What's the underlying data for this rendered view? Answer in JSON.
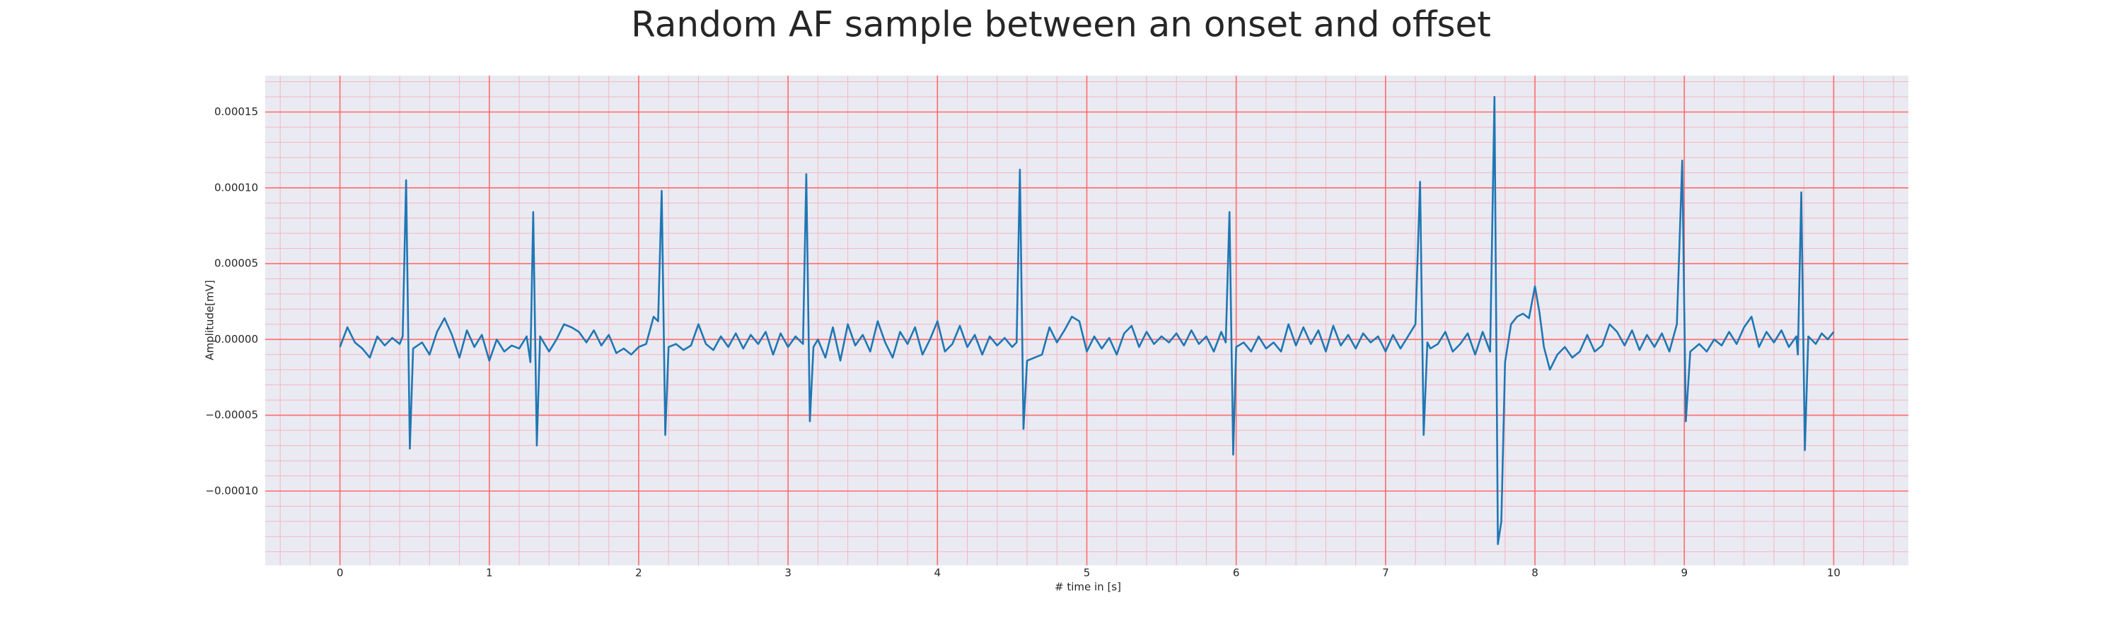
{
  "chart_data": {
    "type": "line",
    "title": "Random AF sample between an onset and offset",
    "xlabel": "# time in [s]",
    "ylabel": "Amplitude[mV]",
    "color": "#1f77b4",
    "background": "#eaeaf2",
    "grid": true,
    "grid_color": "#ff6b6b",
    "minor_grid": true,
    "minor_grid_color": "#f4b6c2",
    "xlim": [
      -0.5,
      10.5
    ],
    "ylim": [
      -0.000149,
      0.000174
    ],
    "xticks": [
      0,
      1,
      2,
      3,
      4,
      5,
      6,
      7,
      8,
      9,
      10
    ],
    "yticks": [
      {
        "value": -0.0001,
        "label": "−0.00010"
      },
      {
        "value": -5e-05,
        "label": "−0.00005"
      },
      {
        "value": 0,
        "label": "0.00000"
      },
      5e-05,
      {
        "value": 0.0001,
        "label": "0.00010"
      },
      {
        "value": 0.00015,
        "label": "0.00015"
      }
    ],
    "x": [
      0,
      0.05,
      0.1,
      0.15,
      0.2,
      0.25,
      0.3,
      0.35,
      0.4,
      0.42,
      0.443,
      0.468,
      0.49,
      0.55,
      0.6,
      0.65,
      0.7,
      0.75,
      0.8,
      0.85,
      0.9,
      0.95,
      1.0,
      1.05,
      1.1,
      1.15,
      1.2,
      1.25,
      1.275,
      1.294,
      1.318,
      1.34,
      1.4,
      1.45,
      1.5,
      1.55,
      1.6,
      1.65,
      1.7,
      1.75,
      1.8,
      1.85,
      1.9,
      1.95,
      2.0,
      2.05,
      2.1,
      2.13,
      2.154,
      2.178,
      2.2,
      2.25,
      2.3,
      2.35,
      2.4,
      2.45,
      2.5,
      2.55,
      2.6,
      2.65,
      2.7,
      2.75,
      2.8,
      2.85,
      2.9,
      2.95,
      3.0,
      3.05,
      3.1,
      3.122,
      3.146,
      3.17,
      3.2,
      3.25,
      3.3,
      3.35,
      3.4,
      3.45,
      3.5,
      3.55,
      3.6,
      3.65,
      3.7,
      3.75,
      3.8,
      3.85,
      3.9,
      3.95,
      4.0,
      4.05,
      4.1,
      4.15,
      4.2,
      4.25,
      4.3,
      4.35,
      4.4,
      4.45,
      4.5,
      4.53,
      4.552,
      4.576,
      4.6,
      4.65,
      4.7,
      4.75,
      4.8,
      4.85,
      4.9,
      4.95,
      5.0,
      5.05,
      5.1,
      5.15,
      5.2,
      5.25,
      5.3,
      5.35,
      5.4,
      5.45,
      5.5,
      5.55,
      5.6,
      5.65,
      5.7,
      5.75,
      5.8,
      5.85,
      5.9,
      5.93,
      5.955,
      5.98,
      6.0,
      6.05,
      6.1,
      6.15,
      6.2,
      6.25,
      6.3,
      6.35,
      6.4,
      6.45,
      6.5,
      6.55,
      6.6,
      6.65,
      6.7,
      6.75,
      6.8,
      6.85,
      6.9,
      6.95,
      7.0,
      7.05,
      7.1,
      7.15,
      7.2,
      7.231,
      7.255,
      7.28,
      7.3,
      7.35,
      7.4,
      7.45,
      7.5,
      7.55,
      7.6,
      7.65,
      7.7,
      7.729,
      7.752,
      7.775,
      7.8,
      7.84,
      7.88,
      7.92,
      7.96,
      8.0,
      8.03,
      8.06,
      8.1,
      8.15,
      8.2,
      8.25,
      8.3,
      8.35,
      8.4,
      8.45,
      8.5,
      8.55,
      8.6,
      8.65,
      8.7,
      8.75,
      8.8,
      8.85,
      8.9,
      8.95,
      8.986,
      9.01,
      9.04,
      9.1,
      9.15,
      9.2,
      9.25,
      9.3,
      9.35,
      9.4,
      9.45,
      9.5,
      9.55,
      9.6,
      9.65,
      9.7,
      9.75,
      9.76,
      9.783,
      9.807,
      9.83,
      9.88,
      9.92,
      9.96,
      10.0
    ],
    "values": [
      -5e-06,
      8e-06,
      -2e-06,
      -6e-06,
      -1.2e-05,
      2e-06,
      -4e-06,
      1e-06,
      -3e-06,
      2e-06,
      0.000105,
      -7.2e-05,
      -6e-06,
      -2e-06,
      -1e-05,
      5e-06,
      1.4e-05,
      3e-06,
      -1.2e-05,
      6e-06,
      -5e-06,
      3e-06,
      -1.4e-05,
      0,
      -8e-06,
      -4e-06,
      -6e-06,
      2e-06,
      -1.5e-05,
      8.4e-05,
      -7e-05,
      2e-06,
      -8e-06,
      0,
      1e-05,
      8e-06,
      5e-06,
      -2e-06,
      6e-06,
      -4e-06,
      3e-06,
      -9e-06,
      -6e-06,
      -1e-05,
      -5e-06,
      -3e-06,
      1.5e-05,
      1.2e-05,
      9.8e-05,
      -6.3e-05,
      -5e-06,
      -3e-06,
      -7e-06,
      -4e-06,
      1e-05,
      -3e-06,
      -7e-06,
      2e-06,
      -5e-06,
      4e-06,
      -6e-06,
      3e-06,
      -3e-06,
      5e-06,
      -1e-05,
      4e-06,
      -5e-06,
      2e-06,
      -3e-06,
      0.000109,
      -5.4e-05,
      -5e-06,
      0,
      -1.2e-05,
      8e-06,
      -1.4e-05,
      1e-05,
      -4e-06,
      3e-06,
      -8e-06,
      1.2e-05,
      -2e-06,
      -1.2e-05,
      5e-06,
      -3e-06,
      8e-06,
      -1e-05,
      0,
      1.2e-05,
      -8e-06,
      -3e-06,
      9e-06,
      -5e-06,
      3e-06,
      -1e-05,
      2e-06,
      -4e-06,
      1e-06,
      -5e-06,
      -2e-06,
      0.000112,
      -5.9e-05,
      -1.4e-05,
      -1.2e-05,
      -1e-05,
      8e-06,
      -2e-06,
      6e-06,
      1.5e-05,
      1.2e-05,
      -8e-06,
      2e-06,
      -6e-06,
      1e-06,
      -1e-05,
      4e-06,
      9e-06,
      -5e-06,
      5e-06,
      -3e-06,
      2e-06,
      -2e-06,
      4e-06,
      -4e-06,
      6e-06,
      -3e-06,
      2e-06,
      -8e-06,
      5e-06,
      -2e-06,
      8.4e-05,
      -7.6e-05,
      -5e-06,
      -2e-06,
      -8e-06,
      2e-06,
      -6e-06,
      -2e-06,
      -8e-06,
      1e-05,
      -4e-06,
      8e-06,
      -3e-06,
      6e-06,
      -8e-06,
      9e-06,
      -4e-06,
      3e-06,
      -6e-06,
      4e-06,
      -2e-06,
      2e-06,
      -8e-06,
      3e-06,
      -6e-06,
      2e-06,
      1e-05,
      0.000104,
      -6.3e-05,
      -2e-06,
      -6e-06,
      -3e-06,
      5e-06,
      -8e-06,
      -3e-06,
      4e-06,
      -1e-05,
      5e-06,
      -8e-06,
      0.00016,
      -0.000135,
      -0.00012,
      -1.5e-05,
      1e-05,
      1.5e-05,
      1.7e-05,
      1.4e-05,
      3.5e-05,
      1.8e-05,
      -5e-06,
      -2e-05,
      -1e-05,
      -5e-06,
      -1.2e-05,
      -8e-06,
      3e-06,
      -8e-06,
      -4e-06,
      1e-05,
      5e-06,
      -4e-06,
      6e-06,
      -7e-06,
      3e-06,
      -5e-06,
      4e-06,
      -8e-06,
      1e-05,
      0.000118,
      -5.4e-05,
      -8e-06,
      -3e-06,
      -8e-06,
      0,
      -4e-06,
      5e-06,
      -3e-06,
      8e-06,
      1.5e-05,
      -5e-06,
      5e-06,
      -2e-06,
      6e-06,
      -5e-06,
      2e-06,
      -1e-05,
      9.7e-05,
      -7.3e-05,
      2e-06,
      -3e-06,
      4e-06,
      0,
      5e-06
    ]
  }
}
